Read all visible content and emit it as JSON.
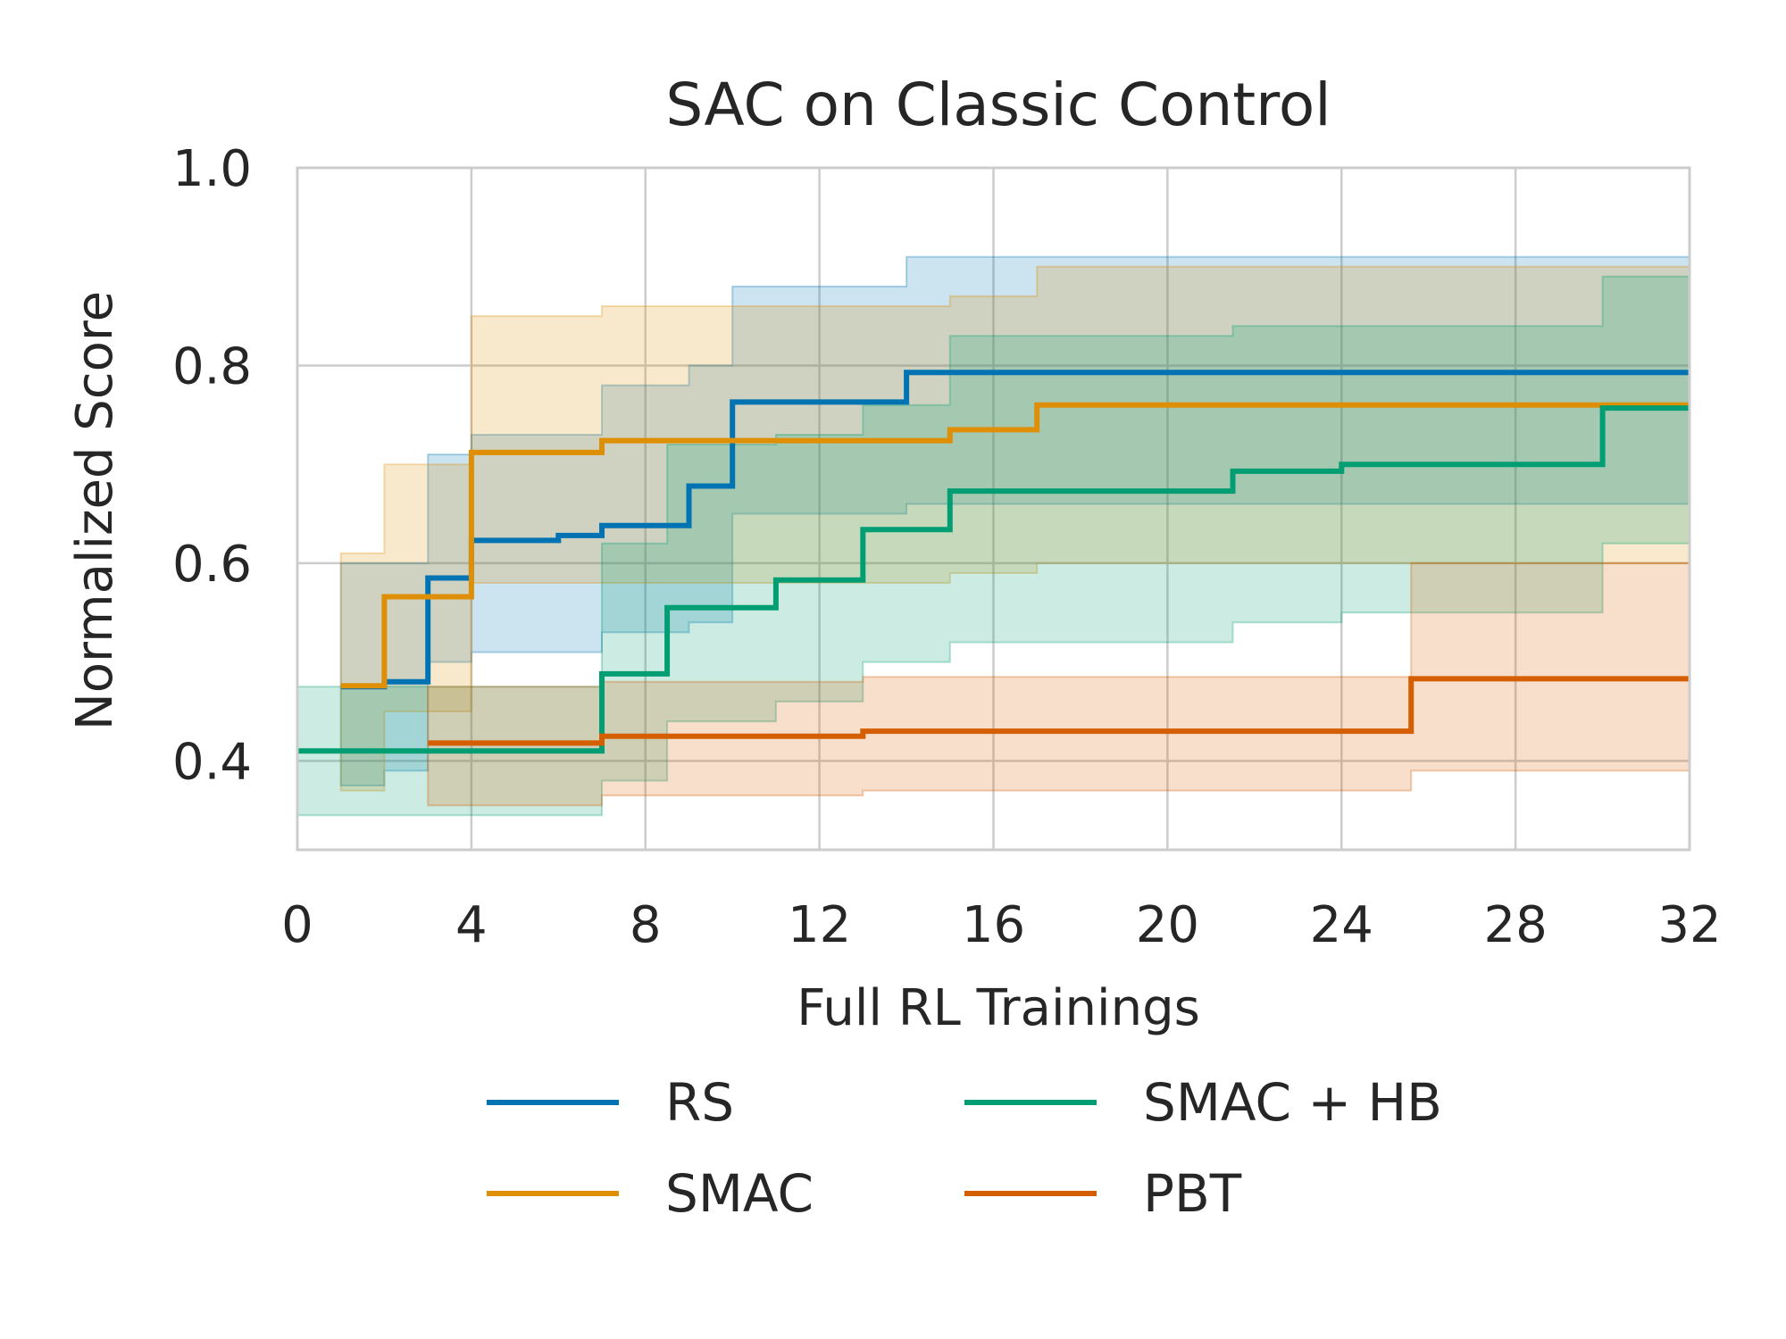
{
  "chart_data": {
    "type": "line",
    "title": "SAC on Classic Control",
    "xlabel": "Full RL Trainings",
    "ylabel": "Normalized Score",
    "xlim": [
      0,
      32
    ],
    "ylim": [
      0.31,
      1.0
    ],
    "xticks": [
      0,
      4,
      8,
      12,
      16,
      20,
      24,
      28,
      32
    ],
    "xtick_labels": [
      "0",
      "4",
      "8",
      "12",
      "16",
      "20",
      "24",
      "28",
      "32"
    ],
    "yticks": [
      0.4,
      0.6,
      0.8,
      1.0
    ],
    "ytick_labels": [
      "0.4",
      "0.6",
      "0.8",
      "1.0"
    ],
    "grid": true,
    "legend": {
      "placement": "bottom",
      "columns": 2
    },
    "series": [
      {
        "name": "RS",
        "color": "#0173b2",
        "step": true,
        "x": [
          1,
          2,
          3,
          4,
          6,
          7,
          9,
          10,
          14,
          32
        ],
        "y": [
          0.475,
          0.48,
          0.585,
          0.623,
          0.628,
          0.638,
          0.678,
          0.763,
          0.793,
          0.793
        ],
        "band_low": [
          0.375,
          0.39,
          0.5,
          0.51,
          0.51,
          0.53,
          0.54,
          0.65,
          0.66,
          0.66
        ],
        "band_high": [
          0.6,
          0.6,
          0.71,
          0.73,
          0.73,
          0.78,
          0.8,
          0.88,
          0.91,
          0.91
        ]
      },
      {
        "name": "SMAC",
        "color": "#de8f05",
        "step": true,
        "x": [
          1,
          2,
          4,
          7,
          15,
          17,
          32
        ],
        "y": [
          0.476,
          0.566,
          0.712,
          0.724,
          0.735,
          0.76,
          0.76
        ],
        "band_low": [
          0.37,
          0.45,
          0.58,
          0.58,
          0.59,
          0.6,
          0.6
        ],
        "band_high": [
          0.61,
          0.7,
          0.85,
          0.86,
          0.87,
          0.9,
          0.9
        ]
      },
      {
        "name": "SMAC + HB",
        "color": "#029e73",
        "step": true,
        "x": [
          0,
          7,
          8.5,
          11,
          13,
          15,
          21.5,
          24,
          30,
          32
        ],
        "y": [
          0.41,
          0.488,
          0.555,
          0.583,
          0.634,
          0.673,
          0.693,
          0.7,
          0.757,
          0.757
        ],
        "band_low": [
          0.345,
          0.38,
          0.44,
          0.46,
          0.5,
          0.52,
          0.54,
          0.55,
          0.62,
          0.62
        ],
        "band_high": [
          0.475,
          0.62,
          0.72,
          0.73,
          0.76,
          0.83,
          0.84,
          0.84,
          0.89,
          0.89
        ]
      },
      {
        "name": "PBT",
        "color": "#d55e00",
        "step": true,
        "x": [
          3,
          7,
          13,
          25.6,
          32
        ],
        "y": [
          0.418,
          0.425,
          0.43,
          0.483,
          0.483
        ],
        "band_low": [
          0.355,
          0.365,
          0.37,
          0.39,
          0.39
        ],
        "band_high": [
          0.475,
          0.48,
          0.485,
          0.6,
          0.6
        ]
      }
    ]
  }
}
